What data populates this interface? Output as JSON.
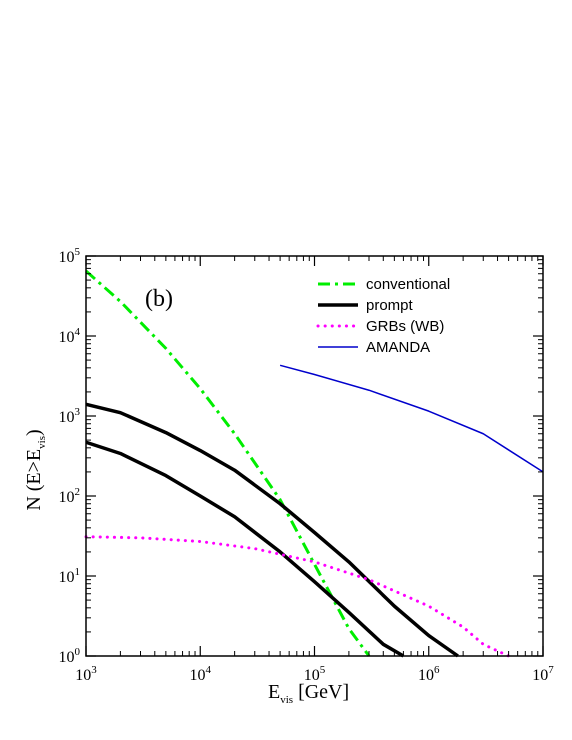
{
  "chart_data": {
    "type": "line",
    "panel_label": "(b)",
    "xlabel": {
      "base": "E",
      "sub": "vis",
      "unit": "[GeV]"
    },
    "ylabel": {
      "prefix": "N (E>E",
      "sub": "vis",
      "suffix": ")"
    },
    "xscale": "log",
    "yscale": "log",
    "xlim": [
      1000,
      10000000
    ],
    "ylim": [
      1,
      100000
    ],
    "grid": false,
    "legend_position": "top-right",
    "x_ticks": [
      {
        "value": 1000,
        "base": "10",
        "exp": "3"
      },
      {
        "value": 10000,
        "base": "10",
        "exp": "4"
      },
      {
        "value": 100000,
        "base": "10",
        "exp": "5"
      },
      {
        "value": 1000000,
        "base": "10",
        "exp": "6"
      },
      {
        "value": 10000000,
        "base": "10",
        "exp": "7"
      }
    ],
    "y_ticks": [
      {
        "value": 1,
        "base": "10",
        "exp": "0"
      },
      {
        "value": 10,
        "base": "10",
        "exp": "1"
      },
      {
        "value": 100,
        "base": "10",
        "exp": "2"
      },
      {
        "value": 1000,
        "base": "10",
        "exp": "3"
      },
      {
        "value": 10000,
        "base": "10",
        "exp": "4"
      },
      {
        "value": 100000,
        "base": "10",
        "exp": "5"
      }
    ],
    "series": [
      {
        "name": "conventional",
        "color": "#00ee00",
        "style": "dash-dot",
        "x": [
          1000,
          2000,
          5000,
          10000,
          20000,
          50000,
          100000,
          200000,
          300000
        ],
        "y": [
          65000,
          27000,
          7000,
          2200,
          600,
          90,
          14,
          2.2,
          1
        ]
      },
      {
        "name": "prompt",
        "color": "#000000",
        "style": "solid-thick",
        "x": [
          1000,
          2000,
          5000,
          10000,
          20000,
          50000,
          100000,
          200000,
          500000,
          1000000,
          1800000
        ],
        "y": [
          1400,
          1100,
          620,
          370,
          210,
          80,
          35,
          15,
          4.2,
          1.8,
          1
        ]
      },
      {
        "name": "",
        "color": "#000000",
        "style": "solid-thick",
        "x": [
          1000,
          2000,
          5000,
          10000,
          20000,
          50000,
          100000,
          200000,
          400000,
          600000
        ],
        "y": [
          470,
          340,
          180,
          100,
          55,
          20,
          8.5,
          3.5,
          1.4,
          1
        ]
      },
      {
        "name": "GRBs (WB)",
        "color": "#ff00ff",
        "style": "dotted",
        "x": [
          1000,
          3000,
          10000,
          30000,
          100000,
          300000,
          1000000,
          2000000,
          3000000,
          5000000
        ],
        "y": [
          31,
          30,
          27,
          22,
          15,
          9,
          4.2,
          2.3,
          1.4,
          1
        ]
      },
      {
        "name": "AMANDA",
        "color": "#0000cc",
        "style": "solid-thin",
        "x": [
          50000,
          100000,
          300000,
          1000000,
          3000000,
          10000000
        ],
        "y": [
          4300,
          3300,
          2100,
          1150,
          600,
          200
        ]
      }
    ]
  }
}
